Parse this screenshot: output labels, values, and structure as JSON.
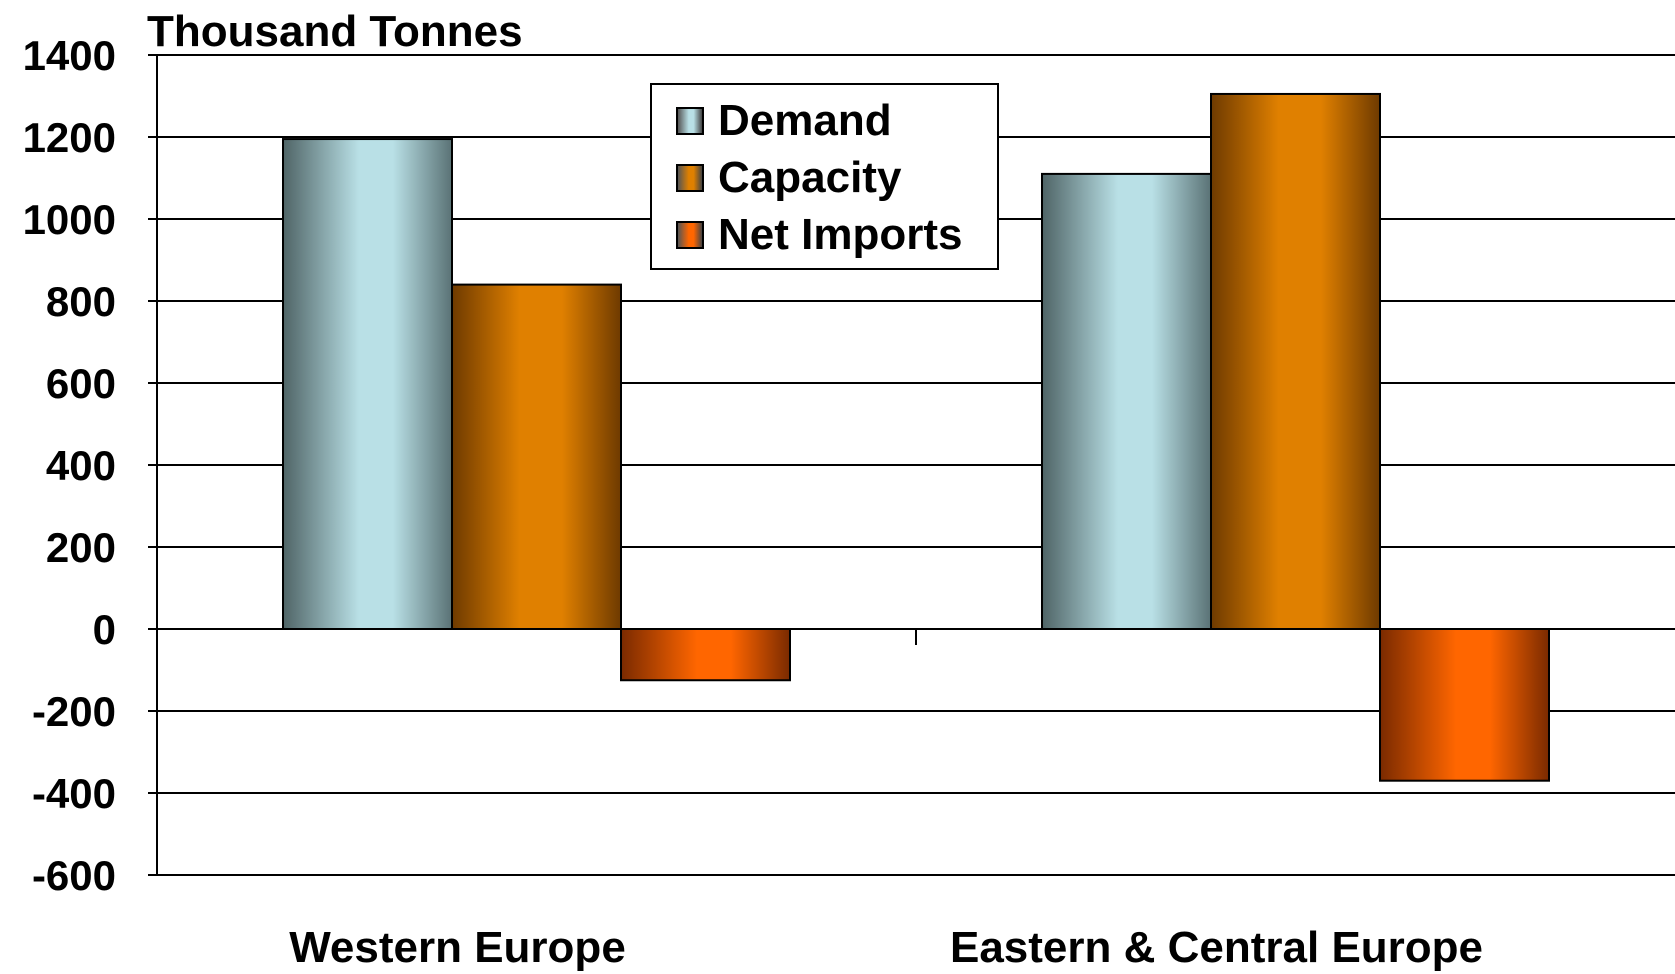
{
  "chart_data": {
    "type": "bar",
    "title": "",
    "ylabel": "Thousand Tonnes",
    "xlabel": "",
    "ylim": [
      -600,
      1400
    ],
    "yticks": [
      "1400",
      "1200",
      "1000",
      "800",
      "600",
      "400",
      "200",
      "0",
      "-200",
      "-400",
      "-600"
    ],
    "categories": [
      "Western Europe",
      "Eastern & Central Europe"
    ],
    "series": [
      {
        "name": "Demand",
        "values": [
          1195,
          1110
        ]
      },
      {
        "name": "Capacity",
        "values": [
          840,
          1305
        ]
      },
      {
        "name": "Net Imports",
        "values": [
          -125,
          -370
        ]
      }
    ],
    "grid": true,
    "legend": "top-center"
  },
  "colors": {
    "Demand": "#b9e0e6",
    "Capacity": "#e08000",
    "Net Imports": "#ff6600"
  }
}
